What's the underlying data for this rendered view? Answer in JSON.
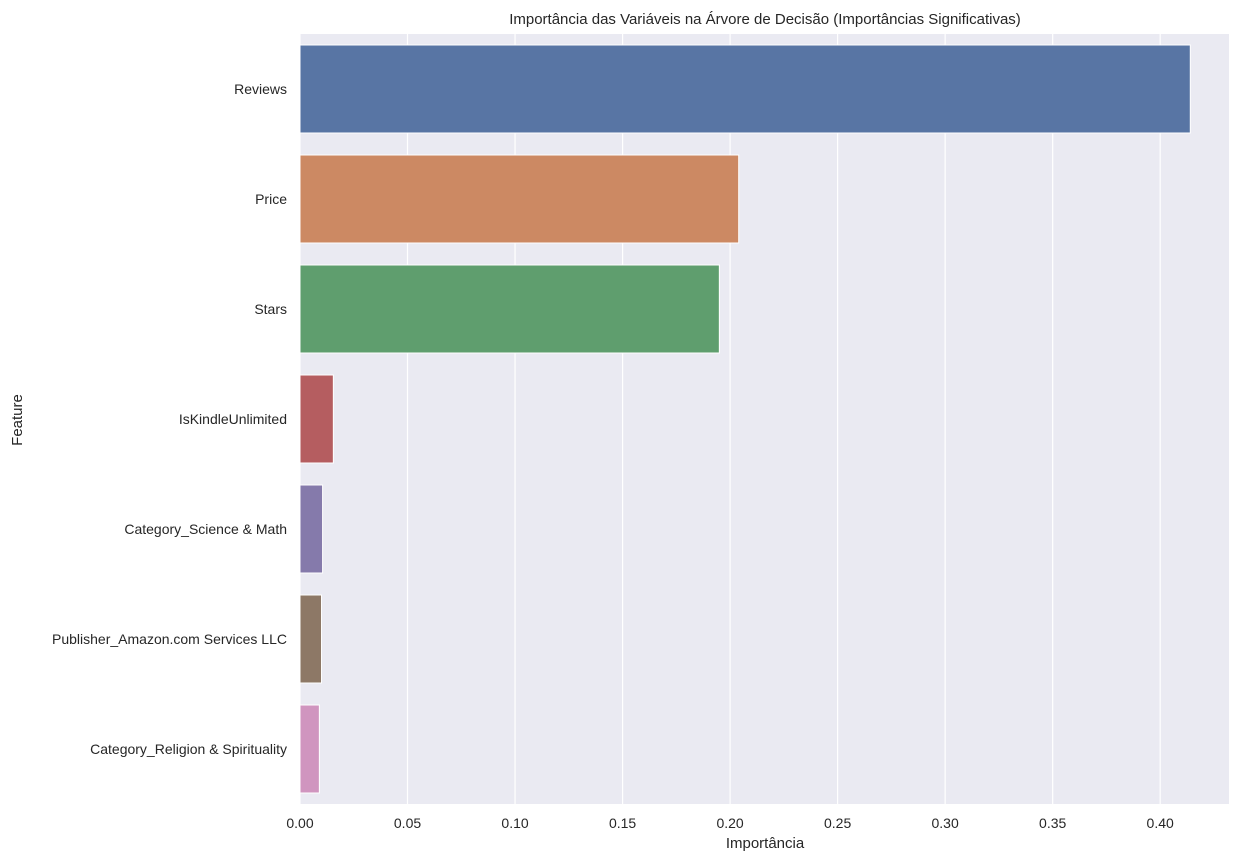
{
  "chart_data": {
    "type": "bar",
    "orientation": "horizontal",
    "title": "Importância das Variáveis na Árvore de Decisão (Importâncias Significativas)",
    "xlabel": "Importância",
    "ylabel": "Feature",
    "categories": [
      "Reviews",
      "Price",
      "Stars",
      "IsKindleUnlimited",
      "Category_Science & Math",
      "Publisher_Amazon.com Services LLC",
      "Category_Religion & Spirituality"
    ],
    "values": [
      0.414,
      0.204,
      0.195,
      0.0155,
      0.0105,
      0.01,
      0.009
    ],
    "colors": [
      "#5875a4",
      "#cc8963",
      "#5f9e6e",
      "#b55d60",
      "#857aab",
      "#8d7866",
      "#d095bf"
    ],
    "xlim": [
      0,
      0.432
    ],
    "xticks": [
      0.0,
      0.05,
      0.1,
      0.15,
      0.2,
      0.25,
      0.3,
      0.35,
      0.4
    ],
    "xtick_labels": [
      "0.00",
      "0.05",
      "0.10",
      "0.15",
      "0.20",
      "0.25",
      "0.30",
      "0.35",
      "0.40"
    ],
    "grid": true,
    "background_color": "#eaeaf2",
    "grid_color": "#ffffff"
  }
}
